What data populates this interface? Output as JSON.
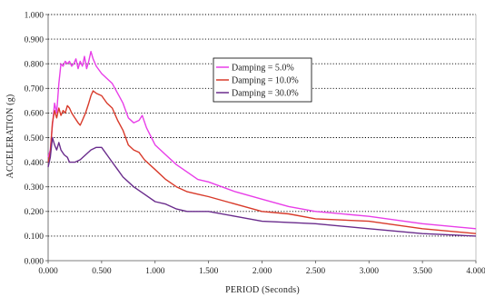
{
  "chart_data": {
    "type": "line",
    "title": "",
    "xlabel": "PERIOD (Seconds)",
    "ylabel": "ACCELERATION (g)",
    "xlim": [
      0.0,
      4.0
    ],
    "ylim": [
      0.0,
      1.0
    ],
    "x_ticks": [
      "0.000",
      "0.500",
      "1.000",
      "1.500",
      "2.000",
      "2.500",
      "3.000",
      "3.500",
      "4.000"
    ],
    "y_ticks": [
      "0.000",
      "0.100",
      "0.200",
      "0.300",
      "0.400",
      "0.500",
      "0.600",
      "0.700",
      "0.800",
      "0.900",
      "1.000"
    ],
    "grid": "horizontal dotted",
    "legend_position": "center",
    "series": [
      {
        "name": "Damping = 5.0%",
        "color": "#e83ee8",
        "points": [
          [
            0.0,
            0.42
          ],
          [
            0.02,
            0.45
          ],
          [
            0.04,
            0.55
          ],
          [
            0.06,
            0.64
          ],
          [
            0.08,
            0.6
          ],
          [
            0.1,
            0.72
          ],
          [
            0.12,
            0.8
          ],
          [
            0.14,
            0.79
          ],
          [
            0.16,
            0.81
          ],
          [
            0.18,
            0.8
          ],
          [
            0.2,
            0.81
          ],
          [
            0.22,
            0.79
          ],
          [
            0.24,
            0.8
          ],
          [
            0.26,
            0.82
          ],
          [
            0.28,
            0.78
          ],
          [
            0.3,
            0.81
          ],
          [
            0.32,
            0.79
          ],
          [
            0.34,
            0.83
          ],
          [
            0.36,
            0.78
          ],
          [
            0.38,
            0.81
          ],
          [
            0.4,
            0.85
          ],
          [
            0.42,
            0.82
          ],
          [
            0.45,
            0.79
          ],
          [
            0.5,
            0.76
          ],
          [
            0.55,
            0.74
          ],
          [
            0.6,
            0.72
          ],
          [
            0.65,
            0.68
          ],
          [
            0.7,
            0.64
          ],
          [
            0.75,
            0.58
          ],
          [
            0.8,
            0.56
          ],
          [
            0.85,
            0.57
          ],
          [
            0.88,
            0.59
          ],
          [
            0.92,
            0.54
          ],
          [
            1.0,
            0.47
          ],
          [
            1.1,
            0.43
          ],
          [
            1.2,
            0.39
          ],
          [
            1.3,
            0.36
          ],
          [
            1.4,
            0.33
          ],
          [
            1.5,
            0.32
          ],
          [
            1.75,
            0.28
          ],
          [
            2.0,
            0.25
          ],
          [
            2.25,
            0.22
          ],
          [
            2.5,
            0.2
          ],
          [
            3.0,
            0.18
          ],
          [
            3.5,
            0.15
          ],
          [
            4.0,
            0.13
          ]
        ]
      },
      {
        "name": "Damping = 10.0%",
        "color": "#d83a2a",
        "points": [
          [
            0.0,
            0.4
          ],
          [
            0.02,
            0.44
          ],
          [
            0.04,
            0.56
          ],
          [
            0.06,
            0.61
          ],
          [
            0.08,
            0.58
          ],
          [
            0.1,
            0.62
          ],
          [
            0.12,
            0.59
          ],
          [
            0.14,
            0.61
          ],
          [
            0.16,
            0.6
          ],
          [
            0.18,
            0.63
          ],
          [
            0.2,
            0.62
          ],
          [
            0.22,
            0.6
          ],
          [
            0.25,
            0.58
          ],
          [
            0.28,
            0.56
          ],
          [
            0.3,
            0.55
          ],
          [
            0.32,
            0.57
          ],
          [
            0.35,
            0.6
          ],
          [
            0.38,
            0.64
          ],
          [
            0.4,
            0.67
          ],
          [
            0.42,
            0.69
          ],
          [
            0.45,
            0.68
          ],
          [
            0.5,
            0.67
          ],
          [
            0.55,
            0.64
          ],
          [
            0.6,
            0.62
          ],
          [
            0.65,
            0.57
          ],
          [
            0.7,
            0.53
          ],
          [
            0.75,
            0.47
          ],
          [
            0.8,
            0.45
          ],
          [
            0.85,
            0.44
          ],
          [
            0.9,
            0.41
          ],
          [
            1.0,
            0.37
          ],
          [
            1.1,
            0.33
          ],
          [
            1.2,
            0.3
          ],
          [
            1.3,
            0.28
          ],
          [
            1.4,
            0.27
          ],
          [
            1.5,
            0.26
          ],
          [
            1.75,
            0.23
          ],
          [
            2.0,
            0.2
          ],
          [
            2.25,
            0.19
          ],
          [
            2.5,
            0.17
          ],
          [
            3.0,
            0.16
          ],
          [
            3.5,
            0.13
          ],
          [
            4.0,
            0.11
          ]
        ]
      },
      {
        "name": "Damping = 30.0%",
        "color": "#6a2c8c",
        "points": [
          [
            0.0,
            0.38
          ],
          [
            0.02,
            0.42
          ],
          [
            0.04,
            0.5
          ],
          [
            0.06,
            0.47
          ],
          [
            0.08,
            0.45
          ],
          [
            0.1,
            0.48
          ],
          [
            0.12,
            0.45
          ],
          [
            0.15,
            0.43
          ],
          [
            0.18,
            0.42
          ],
          [
            0.2,
            0.4
          ],
          [
            0.25,
            0.4
          ],
          [
            0.3,
            0.41
          ],
          [
            0.35,
            0.43
          ],
          [
            0.4,
            0.45
          ],
          [
            0.45,
            0.46
          ],
          [
            0.5,
            0.46
          ],
          [
            0.55,
            0.43
          ],
          [
            0.6,
            0.4
          ],
          [
            0.65,
            0.37
          ],
          [
            0.7,
            0.34
          ],
          [
            0.8,
            0.3
          ],
          [
            0.9,
            0.27
          ],
          [
            1.0,
            0.24
          ],
          [
            1.1,
            0.23
          ],
          [
            1.2,
            0.21
          ],
          [
            1.3,
            0.2
          ],
          [
            1.5,
            0.2
          ],
          [
            1.75,
            0.18
          ],
          [
            2.0,
            0.16
          ],
          [
            2.5,
            0.15
          ],
          [
            3.0,
            0.13
          ],
          [
            3.5,
            0.11
          ],
          [
            4.0,
            0.1
          ]
        ]
      }
    ]
  }
}
